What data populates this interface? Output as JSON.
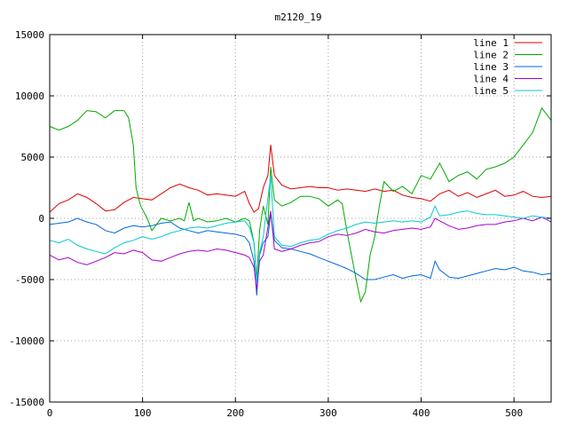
{
  "chart_data": {
    "type": "line",
    "title": "m2120_19",
    "xlabel": "",
    "ylabel": "",
    "xlim": [
      0,
      540
    ],
    "ylim": [
      -15000,
      15000
    ],
    "xticks": [
      0,
      100,
      200,
      300,
      400,
      500
    ],
    "yticks": [
      -15000,
      -10000,
      -5000,
      0,
      5000,
      10000,
      15000
    ],
    "grid": true,
    "legend_position": "top-right",
    "series": [
      {
        "name": "line 1",
        "color": "#dd0000",
        "points": [
          [
            0,
            500
          ],
          [
            10,
            1200
          ],
          [
            20,
            1500
          ],
          [
            30,
            2000
          ],
          [
            40,
            1700
          ],
          [
            50,
            1200
          ],
          [
            60,
            600
          ],
          [
            70,
            700
          ],
          [
            80,
            1300
          ],
          [
            90,
            1700
          ],
          [
            100,
            1600
          ],
          [
            110,
            1500
          ],
          [
            120,
            2000
          ],
          [
            130,
            2500
          ],
          [
            140,
            2800
          ],
          [
            150,
            2500
          ],
          [
            160,
            2300
          ],
          [
            170,
            1900
          ],
          [
            180,
            2000
          ],
          [
            190,
            1900
          ],
          [
            200,
            1800
          ],
          [
            210,
            2200
          ],
          [
            215,
            1200
          ],
          [
            220,
            500
          ],
          [
            225,
            800
          ],
          [
            230,
            2500
          ],
          [
            235,
            3500
          ],
          [
            238,
            6000
          ],
          [
            242,
            3500
          ],
          [
            250,
            2700
          ],
          [
            260,
            2400
          ],
          [
            270,
            2500
          ],
          [
            280,
            2600
          ],
          [
            290,
            2500
          ],
          [
            300,
            2500
          ],
          [
            310,
            2300
          ],
          [
            320,
            2400
          ],
          [
            330,
            2300
          ],
          [
            340,
            2200
          ],
          [
            350,
            2400
          ],
          [
            360,
            2200
          ],
          [
            370,
            2300
          ],
          [
            380,
            1900
          ],
          [
            390,
            1700
          ],
          [
            400,
            1600
          ],
          [
            410,
            1400
          ],
          [
            420,
            2000
          ],
          [
            430,
            2300
          ],
          [
            440,
            1800
          ],
          [
            450,
            2100
          ],
          [
            460,
            1700
          ],
          [
            470,
            2000
          ],
          [
            480,
            2300
          ],
          [
            490,
            1800
          ],
          [
            500,
            1900
          ],
          [
            510,
            2200
          ],
          [
            520,
            1800
          ],
          [
            530,
            1700
          ],
          [
            540,
            1800
          ]
        ]
      },
      {
        "name": "line 2",
        "color": "#00aa00",
        "points": [
          [
            0,
            7500
          ],
          [
            10,
            7200
          ],
          [
            20,
            7500
          ],
          [
            30,
            8000
          ],
          [
            40,
            8800
          ],
          [
            50,
            8700
          ],
          [
            60,
            8200
          ],
          [
            70,
            8800
          ],
          [
            80,
            8800
          ],
          [
            85,
            8200
          ],
          [
            90,
            6000
          ],
          [
            93,
            2500
          ],
          [
            98,
            1000
          ],
          [
            105,
            0
          ],
          [
            110,
            -1000
          ],
          [
            115,
            -500
          ],
          [
            120,
            0
          ],
          [
            130,
            -200
          ],
          [
            140,
            0
          ],
          [
            145,
            -200
          ],
          [
            150,
            1300
          ],
          [
            155,
            -200
          ],
          [
            160,
            0
          ],
          [
            170,
            -300
          ],
          [
            180,
            -200
          ],
          [
            190,
            0
          ],
          [
            200,
            -300
          ],
          [
            210,
            0
          ],
          [
            215,
            -200
          ],
          [
            220,
            -2000
          ],
          [
            223,
            -5000
          ],
          [
            226,
            -1000
          ],
          [
            230,
            1000
          ],
          [
            235,
            -500
          ],
          [
            238,
            4200
          ],
          [
            242,
            1500
          ],
          [
            250,
            1000
          ],
          [
            260,
            1300
          ],
          [
            270,
            1800
          ],
          [
            280,
            1800
          ],
          [
            290,
            1600
          ],
          [
            300,
            1000
          ],
          [
            310,
            1500
          ],
          [
            315,
            1200
          ],
          [
            320,
            -1000
          ],
          [
            325,
            -3000
          ],
          [
            330,
            -5000
          ],
          [
            335,
            -6800
          ],
          [
            340,
            -6000
          ],
          [
            345,
            -3000
          ],
          [
            350,
            -1500
          ],
          [
            355,
            1000
          ],
          [
            360,
            3000
          ],
          [
            370,
            2200
          ],
          [
            380,
            2600
          ],
          [
            390,
            2000
          ],
          [
            400,
            3500
          ],
          [
            410,
            3200
          ],
          [
            420,
            4500
          ],
          [
            430,
            3000
          ],
          [
            440,
            3500
          ],
          [
            450,
            3800
          ],
          [
            460,
            3200
          ],
          [
            470,
            4000
          ],
          [
            480,
            4200
          ],
          [
            490,
            4500
          ],
          [
            500,
            5000
          ],
          [
            510,
            6000
          ],
          [
            520,
            7000
          ],
          [
            530,
            9000
          ],
          [
            540,
            8000
          ]
        ]
      },
      {
        "name": "line 3",
        "color": "#0066dd",
        "points": [
          [
            0,
            -500
          ],
          [
            10,
            -400
          ],
          [
            20,
            -300
          ],
          [
            30,
            0
          ],
          [
            40,
            -300
          ],
          [
            50,
            -500
          ],
          [
            60,
            -1000
          ],
          [
            70,
            -1200
          ],
          [
            80,
            -800
          ],
          [
            90,
            -600
          ],
          [
            100,
            -700
          ],
          [
            110,
            -600
          ],
          [
            120,
            -400
          ],
          [
            130,
            -300
          ],
          [
            140,
            -800
          ],
          [
            150,
            -1000
          ],
          [
            160,
            -1200
          ],
          [
            170,
            -1000
          ],
          [
            180,
            -1100
          ],
          [
            190,
            -1200
          ],
          [
            200,
            -1300
          ],
          [
            210,
            -1500
          ],
          [
            215,
            -2000
          ],
          [
            220,
            -3500
          ],
          [
            223,
            -6300
          ],
          [
            226,
            -3000
          ],
          [
            230,
            -2000
          ],
          [
            235,
            -1500
          ],
          [
            238,
            400
          ],
          [
            242,
            -1800
          ],
          [
            250,
            -2400
          ],
          [
            260,
            -2500
          ],
          [
            270,
            -2700
          ],
          [
            280,
            -2900
          ],
          [
            290,
            -3200
          ],
          [
            300,
            -3500
          ],
          [
            310,
            -3800
          ],
          [
            320,
            -4100
          ],
          [
            330,
            -4500
          ],
          [
            340,
            -5000
          ],
          [
            350,
            -5000
          ],
          [
            360,
            -4800
          ],
          [
            370,
            -4600
          ],
          [
            380,
            -4900
          ],
          [
            390,
            -4700
          ],
          [
            400,
            -4600
          ],
          [
            410,
            -4900
          ],
          [
            415,
            -3500
          ],
          [
            420,
            -4200
          ],
          [
            430,
            -4800
          ],
          [
            440,
            -4900
          ],
          [
            450,
            -4700
          ],
          [
            460,
            -4500
          ],
          [
            470,
            -4300
          ],
          [
            480,
            -4100
          ],
          [
            490,
            -4200
          ],
          [
            500,
            -4000
          ],
          [
            510,
            -4300
          ],
          [
            520,
            -4400
          ],
          [
            530,
            -4600
          ],
          [
            540,
            -4500
          ]
        ]
      },
      {
        "name": "line 4",
        "color": "#aa00cc",
        "points": [
          [
            0,
            -3000
          ],
          [
            10,
            -3400
          ],
          [
            20,
            -3200
          ],
          [
            30,
            -3600
          ],
          [
            40,
            -3800
          ],
          [
            50,
            -3500
          ],
          [
            60,
            -3200
          ],
          [
            70,
            -2800
          ],
          [
            80,
            -2900
          ],
          [
            90,
            -2600
          ],
          [
            100,
            -2800
          ],
          [
            110,
            -3400
          ],
          [
            120,
            -3500
          ],
          [
            130,
            -3200
          ],
          [
            140,
            -2900
          ],
          [
            150,
            -2700
          ],
          [
            160,
            -2600
          ],
          [
            170,
            -2700
          ],
          [
            180,
            -2500
          ],
          [
            190,
            -2600
          ],
          [
            200,
            -2800
          ],
          [
            210,
            -3000
          ],
          [
            215,
            -3200
          ],
          [
            220,
            -4000
          ],
          [
            223,
            -5800
          ],
          [
            226,
            -3500
          ],
          [
            230,
            -3000
          ],
          [
            238,
            600
          ],
          [
            242,
            -2500
          ],
          [
            250,
            -2700
          ],
          [
            260,
            -2500
          ],
          [
            270,
            -2200
          ],
          [
            280,
            -2000
          ],
          [
            290,
            -1900
          ],
          [
            300,
            -1500
          ],
          [
            310,
            -1300
          ],
          [
            320,
            -1400
          ],
          [
            330,
            -1200
          ],
          [
            340,
            -900
          ],
          [
            350,
            -1100
          ],
          [
            360,
            -1200
          ],
          [
            370,
            -1000
          ],
          [
            380,
            -900
          ],
          [
            390,
            -800
          ],
          [
            400,
            -900
          ],
          [
            410,
            -700
          ],
          [
            415,
            0
          ],
          [
            420,
            -200
          ],
          [
            430,
            -600
          ],
          [
            440,
            -900
          ],
          [
            450,
            -800
          ],
          [
            460,
            -600
          ],
          [
            470,
            -500
          ],
          [
            480,
            -500
          ],
          [
            490,
            -300
          ],
          [
            500,
            -200
          ],
          [
            510,
            0
          ],
          [
            520,
            -200
          ],
          [
            530,
            100
          ],
          [
            540,
            -300
          ]
        ]
      },
      {
        "name": "line 5",
        "color": "#00cccc",
        "points": [
          [
            0,
            -1800
          ],
          [
            10,
            -2000
          ],
          [
            20,
            -1700
          ],
          [
            30,
            -2200
          ],
          [
            40,
            -2500
          ],
          [
            50,
            -2700
          ],
          [
            60,
            -2900
          ],
          [
            70,
            -2400
          ],
          [
            80,
            -2000
          ],
          [
            90,
            -1800
          ],
          [
            100,
            -1500
          ],
          [
            110,
            -1700
          ],
          [
            120,
            -1500
          ],
          [
            130,
            -1200
          ],
          [
            140,
            -1000
          ],
          [
            150,
            -800
          ],
          [
            160,
            -700
          ],
          [
            170,
            -800
          ],
          [
            180,
            -600
          ],
          [
            190,
            -400
          ],
          [
            200,
            -300
          ],
          [
            210,
            -200
          ],
          [
            215,
            -700
          ],
          [
            220,
            -2000
          ],
          [
            223,
            -5300
          ],
          [
            226,
            -2800
          ],
          [
            230,
            -1500
          ],
          [
            238,
            3500
          ],
          [
            242,
            -1500
          ],
          [
            250,
            -2200
          ],
          [
            260,
            -2300
          ],
          [
            270,
            -2000
          ],
          [
            280,
            -1800
          ],
          [
            290,
            -1700
          ],
          [
            300,
            -1300
          ],
          [
            310,
            -1000
          ],
          [
            320,
            -800
          ],
          [
            330,
            -500
          ],
          [
            340,
            -300
          ],
          [
            350,
            -400
          ],
          [
            360,
            -300
          ],
          [
            370,
            -200
          ],
          [
            380,
            -300
          ],
          [
            390,
            -200
          ],
          [
            400,
            -300
          ],
          [
            410,
            100
          ],
          [
            415,
            1000
          ],
          [
            420,
            200
          ],
          [
            430,
            300
          ],
          [
            440,
            500
          ],
          [
            450,
            600
          ],
          [
            460,
            400
          ],
          [
            470,
            300
          ],
          [
            480,
            300
          ],
          [
            490,
            200
          ],
          [
            500,
            100
          ],
          [
            510,
            0
          ],
          [
            520,
            200
          ],
          [
            530,
            100
          ],
          [
            540,
            0
          ]
        ]
      }
    ]
  }
}
